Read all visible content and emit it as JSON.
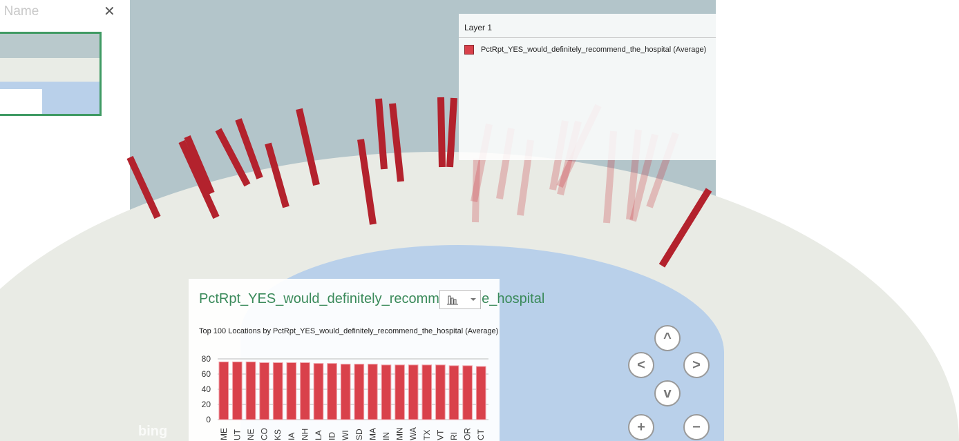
{
  "left_panel": {
    "title": "r Name",
    "close": "✕"
  },
  "legend": {
    "layer": "Layer 1",
    "item": "PctRpt_YES_would_definitely_recommend_the_hospital (Average)",
    "color": "#d9414b"
  },
  "chart_panel": {
    "title": "PctRpt_YES_would_definitely_recommend_the_hospital",
    "subtitle": "Top 100 Locations by PctRpt_YES_would_definitely_recommend_the_hospital (Average)",
    "chart_type_icon": "bar-chart-icon"
  },
  "chart_data": {
    "type": "bar",
    "title": "Top 100 Locations by PctRpt_YES_would_definitely_recommend_the_hospital (Average)",
    "categories": [
      "ME",
      "UT",
      "NE",
      "CO",
      "KS",
      "IA",
      "NH",
      "LA",
      "ID",
      "WI",
      "SD",
      "MA",
      "IN",
      "MN",
      "WA",
      "TX",
      "VT",
      "RI",
      "OR",
      "CT"
    ],
    "values": [
      76,
      76,
      76,
      75,
      75,
      75,
      75,
      74,
      74,
      73,
      73,
      73,
      72,
      72,
      72,
      72,
      72,
      71,
      71,
      70
    ],
    "yticks": [
      "0",
      "20",
      "40",
      "60",
      "80"
    ],
    "ylim": [
      0,
      80
    ],
    "color": "#d9414b"
  },
  "nav": {
    "up": "^",
    "left": "<",
    "right": ">",
    "down": "v",
    "zoom_in": "+",
    "zoom_out": "−"
  },
  "map_logo": "bing"
}
